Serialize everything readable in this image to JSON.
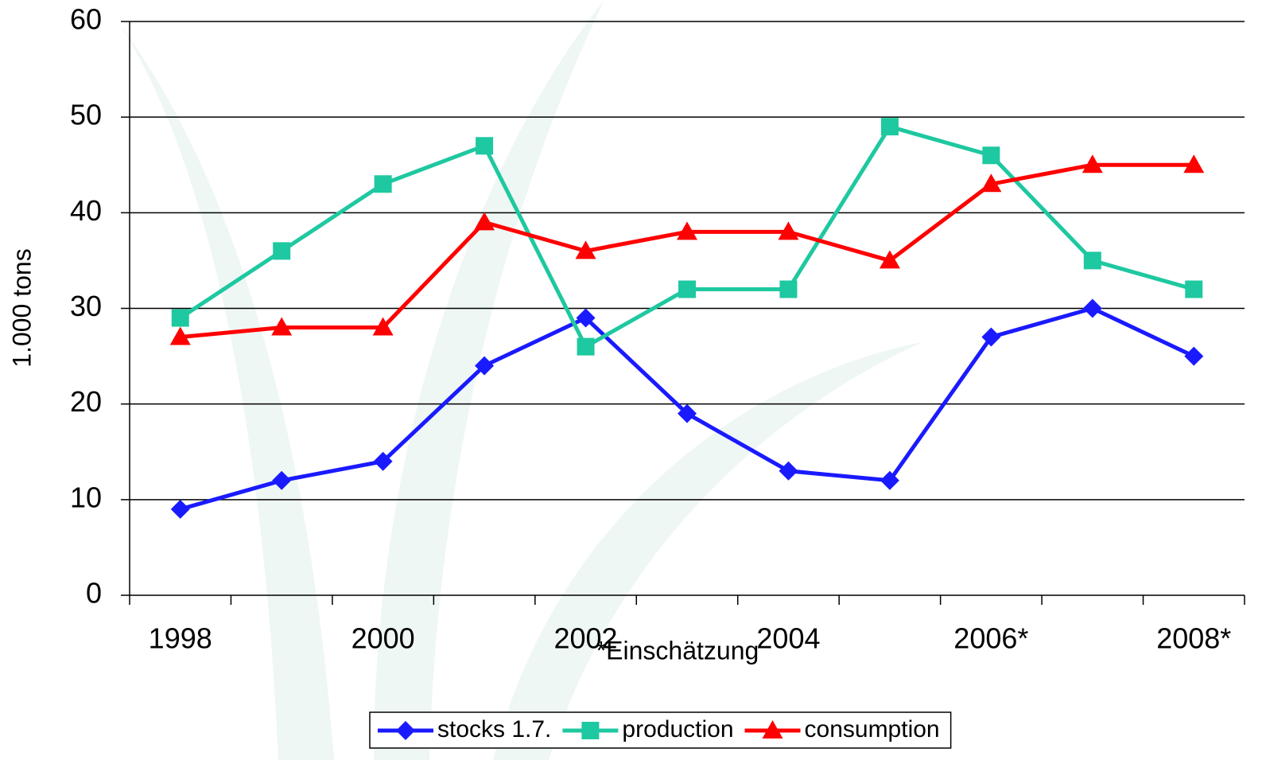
{
  "chart_data": {
    "type": "line",
    "categories": [
      "1998",
      null,
      "2000",
      null,
      "2002",
      null,
      "2004",
      null,
      "2006*",
      null,
      "2008*"
    ],
    "x_label": "*Einschätzung",
    "y_label": "1.000 tons",
    "ylim": [
      0,
      60
    ],
    "yticks": [
      0,
      10,
      20,
      30,
      40,
      50,
      60
    ],
    "grid": true,
    "legend": "bottom",
    "series": [
      {
        "name": "stocks 1.7.",
        "color": "#1a1aff",
        "marker": "diamond",
        "values": [
          9,
          12,
          14,
          24,
          29,
          19,
          13,
          12,
          27,
          30,
          25
        ]
      },
      {
        "name": "production",
        "color": "#1ec8a0",
        "marker": "square",
        "values": [
          29,
          36,
          43,
          47,
          26,
          32,
          32,
          49,
          46,
          35,
          32
        ]
      },
      {
        "name": "consumption",
        "color": "#ff0000",
        "marker": "triangle",
        "values": [
          27,
          28,
          28,
          39,
          36,
          38,
          38,
          35,
          43,
          45,
          45
        ]
      }
    ]
  }
}
